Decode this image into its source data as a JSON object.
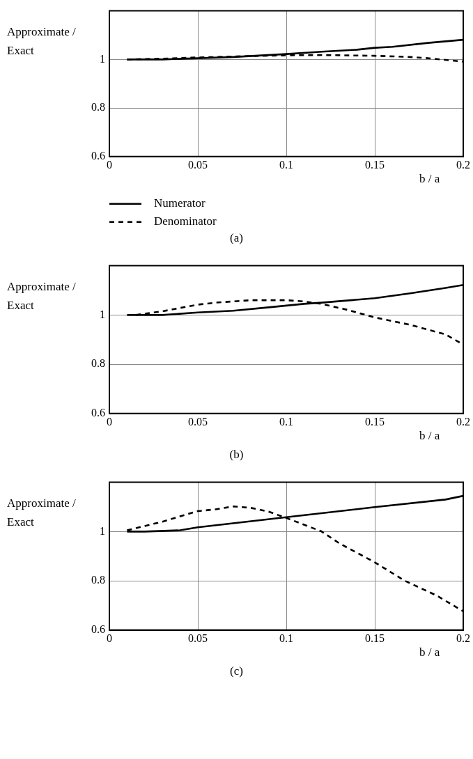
{
  "chart_data": [
    {
      "type": "line",
      "ylabel": "Approximate /\nExact",
      "xlabel": "b / a",
      "xlim": [
        0,
        0.2
      ],
      "xticks": [
        0,
        0.05,
        0.1,
        0.15,
        0.2
      ],
      "ylim": [
        0.6,
        1.2
      ],
      "yticks": [
        0.6,
        0.8,
        1
      ],
      "grid": true,
      "legend": "bottom",
      "annotations": [
        "(a)"
      ],
      "series": [
        {
          "name": "Numerator",
          "color": "#000000",
          "line_style": "solid",
          "x": [
            0.01,
            0.03,
            0.05,
            0.07,
            0.1,
            0.12,
            0.14,
            0.15,
            0.16,
            0.18,
            0.2
          ],
          "values": [
            1.0,
            1.0,
            1.005,
            1.01,
            1.022,
            1.032,
            1.04,
            1.048,
            1.052,
            1.068,
            1.081
          ]
        },
        {
          "name": "Denominator",
          "color": "#000000",
          "line_style": "dashed",
          "x": [
            0.01,
            0.03,
            0.05,
            0.07,
            0.1,
            0.12,
            0.15,
            0.17,
            0.18,
            0.2
          ],
          "values": [
            1.0,
            1.003,
            1.008,
            1.012,
            1.017,
            1.018,
            1.015,
            1.01,
            1.005,
            0.991
          ]
        }
      ]
    },
    {
      "type": "line",
      "ylabel": "Approximate /\nExact",
      "xlabel": "b / a",
      "xlim": [
        0,
        0.2
      ],
      "xticks": [
        0,
        0.05,
        0.1,
        0.15,
        0.2
      ],
      "ylim": [
        0.6,
        1.2
      ],
      "yticks": [
        0.6,
        0.8,
        1
      ],
      "grid": "y",
      "annotations": [
        "(b)"
      ],
      "series": [
        {
          "color": "#000000",
          "line_style": "solid",
          "x": [
            0.01,
            0.03,
            0.05,
            0.07,
            0.09,
            0.11,
            0.12,
            0.15,
            0.17,
            0.19,
            0.2
          ],
          "values": [
            1.0,
            1.0,
            1.01,
            1.017,
            1.031,
            1.045,
            1.05,
            1.068,
            1.088,
            1.11,
            1.122
          ]
        },
        {
          "color": "#000000",
          "line_style": "dashed",
          "x": [
            0.015,
            0.03,
            0.05,
            0.06,
            0.08,
            0.1,
            0.11,
            0.12,
            0.135,
            0.15,
            0.17,
            0.19,
            0.2
          ],
          "values": [
            1.0,
            1.015,
            1.042,
            1.05,
            1.06,
            1.06,
            1.055,
            1.045,
            1.02,
            0.99,
            0.96,
            0.921,
            0.88
          ]
        }
      ]
    },
    {
      "type": "line",
      "ylabel": "Approximate /\nExact",
      "xlabel": "b / a",
      "xlim": [
        0,
        0.2
      ],
      "xticks": [
        0,
        0.05,
        0.1,
        0.15,
        0.2
      ],
      "ylim": [
        0.6,
        1.2
      ],
      "yticks": [
        0.6,
        0.8,
        1
      ],
      "grid": true,
      "annotations": [
        "(c)"
      ],
      "series": [
        {
          "color": "#000000",
          "line_style": "solid",
          "x": [
            0.01,
            0.02,
            0.04,
            0.05,
            0.1,
            0.15,
            0.19,
            0.2
          ],
          "values": [
            1.0,
            1.0,
            1.005,
            1.017,
            1.058,
            1.099,
            1.13,
            1.145
          ]
        },
        {
          "color": "#000000",
          "line_style": "dashed",
          "x": [
            0.01,
            0.03,
            0.05,
            0.06,
            0.07,
            0.08,
            0.09,
            0.1,
            0.11,
            0.12,
            0.13,
            0.15,
            0.167,
            0.185,
            0.2
          ],
          "values": [
            1.005,
            1.04,
            1.083,
            1.09,
            1.102,
            1.096,
            1.081,
            1.055,
            1.028,
            1.0,
            0.952,
            0.875,
            0.8,
            0.74,
            0.676
          ]
        }
      ]
    }
  ]
}
